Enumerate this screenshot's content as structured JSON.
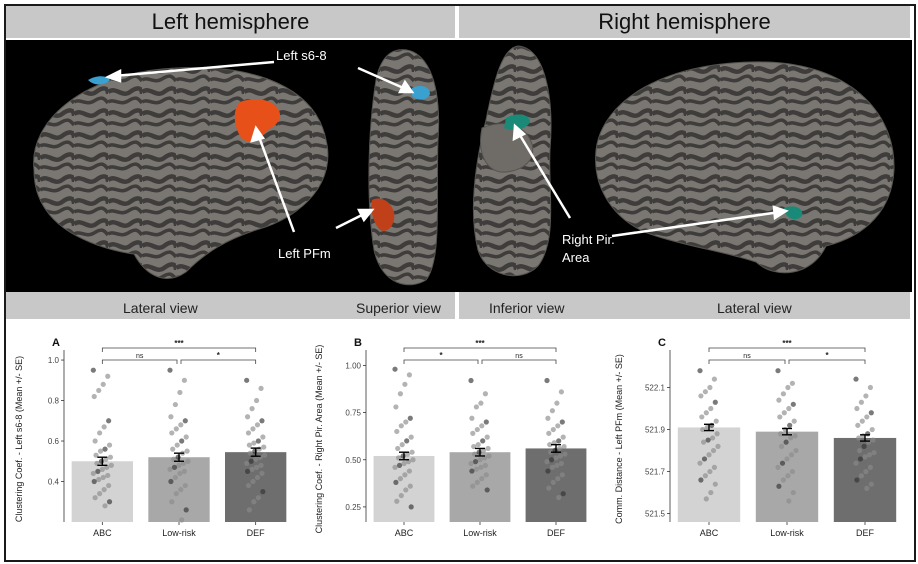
{
  "headers": {
    "left": "Left hemisphere",
    "right": "Right hemisphere"
  },
  "annotations": {
    "left_s68": "Left s6-8",
    "left_pfm": "Left PFm",
    "right_pir_line1": "Right Pir.",
    "right_pir_line2": "Area"
  },
  "views": {
    "lateral_left": "Lateral view",
    "superior": "Superior view",
    "inferior": "Inferior view",
    "lateral_right": "Lateral view"
  },
  "colors": {
    "abc": "#d3d3d3",
    "lowrisk": "#a8a8a8",
    "def": "#6e6e6e",
    "pfm": "#e8501a",
    "s68": "#3aa0d0",
    "pir": "#1a8a78"
  },
  "chart_data": [
    {
      "type": "bar",
      "panel_label": "A",
      "ylabel": "Clustering Coef. - Left s6-8 (Mean +/- SE)",
      "categories": [
        "ABC",
        "Low-risk",
        "DEF"
      ],
      "values": [
        0.5,
        0.52,
        0.545
      ],
      "se": [
        0.02,
        0.02,
        0.02
      ],
      "ylim": [
        0.2,
        1.02
      ],
      "yticks": [
        0.4,
        0.6,
        0.8,
        1.0
      ],
      "ytick_labels": [
        "0.4",
        "0.6",
        "0.8",
        "1.0"
      ],
      "comparisons": [
        {
          "from": 0,
          "to": 1,
          "label": "ns",
          "level": 1
        },
        {
          "from": 1,
          "to": 2,
          "label": "*",
          "level": 1
        },
        {
          "from": 0,
          "to": 2,
          "label": "***",
          "level": 2
        }
      ],
      "points": [
        [
          0.95,
          0.92,
          0.88,
          0.85,
          0.82,
          0.7,
          0.67,
          0.64,
          0.6,
          0.58,
          0.56,
          0.55,
          0.53,
          0.52,
          0.51,
          0.5,
          0.49,
          0.48,
          0.47,
          0.46,
          0.45,
          0.44,
          0.43,
          0.42,
          0.41,
          0.4,
          0.38,
          0.36,
          0.34,
          0.32,
          0.3,
          0.28
        ],
        [
          0.95,
          0.9,
          0.84,
          0.78,
          0.72,
          0.7,
          0.68,
          0.66,
          0.64,
          0.62,
          0.6,
          0.58,
          0.56,
          0.55,
          0.54,
          0.52,
          0.51,
          0.5,
          0.49,
          0.48,
          0.47,
          0.46,
          0.45,
          0.44,
          0.42,
          0.4,
          0.38,
          0.36,
          0.34,
          0.3,
          0.26,
          0.21
        ],
        [
          0.9,
          0.86,
          0.8,
          0.76,
          0.72,
          0.7,
          0.68,
          0.66,
          0.64,
          0.62,
          0.6,
          0.59,
          0.58,
          0.57,
          0.56,
          0.55,
          0.54,
          0.53,
          0.52,
          0.51,
          0.5,
          0.49,
          0.48,
          0.47,
          0.46,
          0.45,
          0.44,
          0.42,
          0.4,
          0.38,
          0.35,
          0.32,
          0.3,
          0.26
        ]
      ]
    },
    {
      "type": "bar",
      "panel_label": "B",
      "ylabel": "Clustering Coef. - Right Pir. Area (Mean +/- SE)",
      "categories": [
        "ABC",
        "Low-risk",
        "DEF"
      ],
      "values": [
        0.52,
        0.54,
        0.56
      ],
      "se": [
        0.02,
        0.02,
        0.02
      ],
      "ylim": [
        0.17,
        1.05
      ],
      "yticks": [
        0.25,
        0.5,
        0.75,
        1.0
      ],
      "ytick_labels": [
        "0.25",
        "0.50",
        "0.75",
        "1.00"
      ],
      "comparisons": [
        {
          "from": 0,
          "to": 1,
          "label": "*",
          "level": 1
        },
        {
          "from": 1,
          "to": 2,
          "label": "ns",
          "level": 1
        },
        {
          "from": 0,
          "to": 2,
          "label": "***",
          "level": 2
        }
      ],
      "points": [
        [
          0.98,
          0.95,
          0.9,
          0.85,
          0.78,
          0.72,
          0.7,
          0.68,
          0.65,
          0.62,
          0.6,
          0.58,
          0.56,
          0.54,
          0.53,
          0.52,
          0.51,
          0.5,
          0.49,
          0.48,
          0.47,
          0.46,
          0.44,
          0.42,
          0.4,
          0.38,
          0.36,
          0.34,
          0.31,
          0.28,
          0.25
        ],
        [
          0.92,
          0.85,
          0.8,
          0.78,
          0.72,
          0.7,
          0.68,
          0.66,
          0.64,
          0.62,
          0.6,
          0.58,
          0.57,
          0.56,
          0.55,
          0.54,
          0.53,
          0.52,
          0.51,
          0.5,
          0.49,
          0.48,
          0.47,
          0.46,
          0.45,
          0.44,
          0.42,
          0.4,
          0.38,
          0.36,
          0.34
        ],
        [
          0.92,
          0.86,
          0.8,
          0.76,
          0.72,
          0.7,
          0.68,
          0.66,
          0.64,
          0.62,
          0.6,
          0.59,
          0.58,
          0.57,
          0.56,
          0.55,
          0.54,
          0.53,
          0.52,
          0.51,
          0.5,
          0.49,
          0.48,
          0.47,
          0.46,
          0.44,
          0.42,
          0.4,
          0.38,
          0.35,
          0.32,
          0.3
        ]
      ]
    },
    {
      "type": "bar",
      "panel_label": "C",
      "ylabel": "Comm. Distance - Left PFm (Mean +/- SE)",
      "categories": [
        "ABC",
        "Low-risk",
        "DEF"
      ],
      "values": [
        521.91,
        521.89,
        521.86
      ],
      "se": [
        0.015,
        0.015,
        0.015
      ],
      "ylim": [
        521.46,
        522.25
      ],
      "yticks": [
        521.5,
        521.7,
        521.9,
        522.1
      ],
      "ytick_labels": [
        "521.5",
        "521.7",
        "521.9",
        "522.1"
      ],
      "comparisons": [
        {
          "from": 0,
          "to": 1,
          "label": "ns",
          "level": 1
        },
        {
          "from": 1,
          "to": 2,
          "label": "*",
          "level": 1
        },
        {
          "from": 0,
          "to": 2,
          "label": "***",
          "level": 2
        }
      ],
      "points": [
        [
          522.18,
          522.14,
          522.1,
          522.08,
          522.06,
          522.03,
          522.0,
          521.98,
          521.96,
          521.94,
          521.92,
          521.91,
          521.9,
          521.88,
          521.86,
          521.85,
          521.84,
          521.82,
          521.8,
          521.78,
          521.76,
          521.74,
          521.72,
          521.7,
          521.68,
          521.66,
          521.64,
          521.6,
          521.57
        ],
        [
          522.18,
          522.12,
          522.1,
          522.07,
          522.04,
          522.02,
          522.0,
          521.98,
          521.96,
          521.94,
          521.92,
          521.9,
          521.88,
          521.87,
          521.86,
          521.84,
          521.82,
          521.8,
          521.78,
          521.76,
          521.74,
          521.72,
          521.7,
          521.68,
          521.66,
          521.63,
          521.6,
          521.56
        ],
        [
          522.14,
          522.1,
          522.06,
          522.03,
          522.0,
          521.98,
          521.96,
          521.94,
          521.92,
          521.9,
          521.88,
          521.87,
          521.86,
          521.85,
          521.84,
          521.82,
          521.8,
          521.79,
          521.78,
          521.77,
          521.76,
          521.74,
          521.72,
          521.7,
          521.68,
          521.66,
          521.64,
          521.62
        ]
      ]
    }
  ]
}
